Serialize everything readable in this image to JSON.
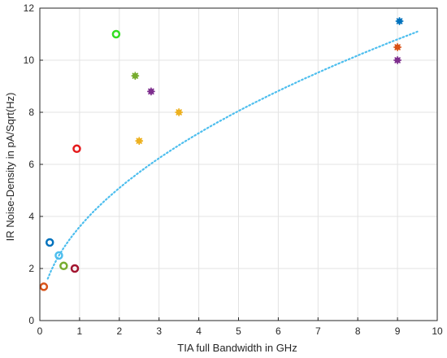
{
  "chart_data": {
    "type": "scatter",
    "title": "",
    "xlabel": "TIA full Bandwidth in GHz",
    "ylabel": "IR  Noise-Density  in  pA/Sqrt(Hz)",
    "xlim": [
      0,
      10
    ],
    "ylim": [
      0,
      12
    ],
    "xticks": [
      "0",
      "1",
      "2",
      "3",
      "4",
      "5",
      "6",
      "7",
      "8",
      "9",
      "10"
    ],
    "yticks": [
      "0",
      "2",
      "4",
      "6",
      "8",
      "10",
      "12"
    ],
    "grid": true,
    "points": [
      {
        "x": 0.1,
        "y": 1.3,
        "marker": "circle-open",
        "color": "#D95319"
      },
      {
        "x": 0.25,
        "y": 3.0,
        "marker": "circle-open",
        "color": "#0072BD"
      },
      {
        "x": 0.48,
        "y": 2.5,
        "marker": "circle-open",
        "color": "#4DBEEE"
      },
      {
        "x": 0.6,
        "y": 2.1,
        "marker": "circle-open",
        "color": "#77AC30"
      },
      {
        "x": 0.88,
        "y": 2.0,
        "marker": "circle-open",
        "color": "#A2142F"
      },
      {
        "x": 0.93,
        "y": 6.6,
        "marker": "circle-open",
        "color": "#E41A1C"
      },
      {
        "x": 1.92,
        "y": 11.0,
        "marker": "circle-open",
        "color": "#33DD22"
      },
      {
        "x": 2.4,
        "y": 9.4,
        "marker": "star",
        "color": "#77AC30"
      },
      {
        "x": 2.5,
        "y": 6.9,
        "marker": "star",
        "color": "#EDB120"
      },
      {
        "x": 2.8,
        "y": 8.8,
        "marker": "star",
        "color": "#7E2F8E"
      },
      {
        "x": 3.5,
        "y": 8.0,
        "marker": "star",
        "color": "#EDB120"
      },
      {
        "x": 9.05,
        "y": 11.5,
        "marker": "star",
        "color": "#0072BD"
      },
      {
        "x": 9.0,
        "y": 10.5,
        "marker": "star",
        "color": "#D95319"
      },
      {
        "x": 9.0,
        "y": 10.0,
        "marker": "star",
        "color": "#7E2F8E"
      }
    ],
    "fit": {
      "type": "power",
      "a": 3.6,
      "b": 0.5,
      "x_range": [
        0.2,
        9.5
      ],
      "color": "#4DBEEE",
      "style": "dotted"
    }
  }
}
